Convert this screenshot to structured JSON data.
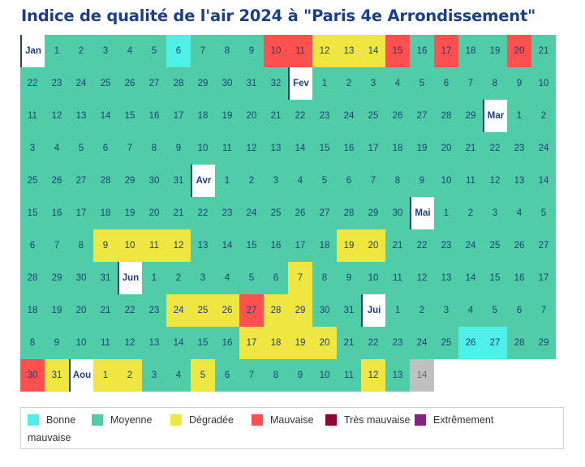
{
  "title": "Indice de qualité de l'air 2024 à \"Paris 4e Arrondissement\"",
  "colors": {
    "B": "#4ef0e7",
    "M": "#50cca7",
    "D": "#f0e641",
    "V": "#ff5050",
    "T": "#960032",
    "E": "#872181",
    "N": "#c0c0c0"
  },
  "legend": {
    "bonne": "Bonne",
    "moyenne": "Moyenne",
    "degradee": "Dégradée",
    "mauvaise": "Mauvaise",
    "tres_mauvaise": "Très mauvaise",
    "extremement": "Extrêmement",
    "extremement_cont": "mauvaise"
  },
  "months": [
    {
      "label": "Jan",
      "days": "MMMMMBMMMVVDDDVMVMMVMMMMMMMMMMMM"
    },
    {
      "label": "Fev",
      "days": "MMMMMMMMMMMMMMMMMMMMMMMMMMMMM"
    },
    {
      "label": "Mar",
      "days": "MMMMMMMMMMMMMMMMMMMMMMMMMMMMMMM"
    },
    {
      "label": "Avr",
      "days": "MMMMMMMMMMMMMMMMMMMMMMMMMMMMMM"
    },
    {
      "label": "Mai",
      "days": "MMMMMMMMDDDDMMMMMMDDMMMMMMMMMMM"
    },
    {
      "label": "Jun",
      "days": "MMMMMMDMMMMMMMMMMMMMMMMDDDVDDMM"
    },
    {
      "label": "Jui",
      "days": "MMMMMMMMMMMMMMMMDDDDMMMMMBBMMVD"
    },
    {
      "label": "Aou",
      "days": "DDMMDMMMMMMDMN"
    }
  ]
}
